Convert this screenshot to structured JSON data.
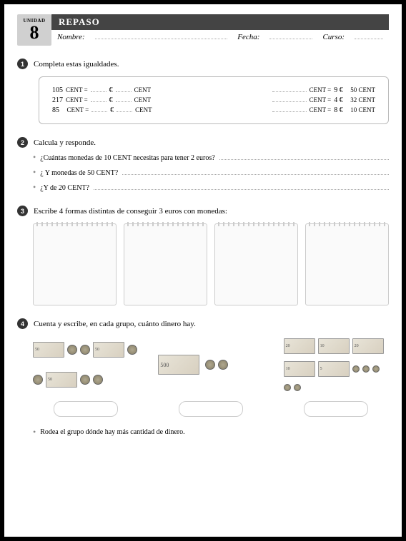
{
  "header": {
    "unit_label": "UNIDAD",
    "unit_number": "8",
    "title": "REPASO",
    "nombre": "Nombre:",
    "fecha": "Fecha:",
    "curso": "Curso:"
  },
  "s1": {
    "num": "1",
    "title": "Completa estas igualdades.",
    "rows": [
      {
        "l_val": "105",
        "l_cent": "CENT =",
        "l_eur": "€",
        "l_cent2": "CENT",
        "r_cent": "CENT =",
        "r_eur": "9 €",
        "r_cent2": "50 CENT"
      },
      {
        "l_val": "217",
        "l_cent": "CENT =",
        "l_eur": "€",
        "l_cent2": "CENT",
        "r_cent": "CENT =",
        "r_eur": "4 €",
        "r_cent2": "32 CENT"
      },
      {
        "l_val": "85",
        "l_cent": "CENT =",
        "l_eur": "€",
        "l_cent2": "CENT",
        "r_cent": "CENT =",
        "r_eur": "8 €",
        "r_cent2": "10 CENT"
      }
    ]
  },
  "s2": {
    "num": "2",
    "title": "Calcula y responde.",
    "q1": "¿Cuántas monedas de 10 CENT necesitas para tener 2 euros?",
    "q2": "¿ Y monedas de 50 CENT?",
    "q3": "¿Y de 20 CENT?"
  },
  "s3": {
    "num": "3",
    "title": "Escribe 4 formas distintas de conseguir 3 euros con monedas:"
  },
  "s4": {
    "num": "4",
    "title": "Cuenta y escribe, en cada grupo, cuánto dinero hay.",
    "note50": "50",
    "note500": "500",
    "note20": "20",
    "note10": "10",
    "note5": "5"
  },
  "final": "Rodea el grupo dónde hay más cantidad de dinero."
}
